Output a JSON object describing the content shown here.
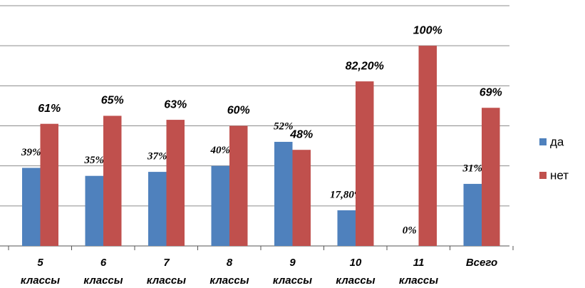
{
  "chart_data": {
    "type": "bar",
    "categories": [
      "5 классы",
      "6 классы",
      "7 классы",
      "8 классы",
      "9 классы",
      "10 классы",
      "11 классы",
      "Всего"
    ],
    "series": [
      {
        "name": "да",
        "color": "#4f81bd",
        "values": [
          39,
          35,
          37,
          40,
          52,
          17.8,
          0,
          31
        ],
        "value_labels": [
          "39%",
          "35%",
          "37%",
          "40%",
          "52%",
          "17,80%",
          "0%",
          "31%"
        ]
      },
      {
        "name": "нет",
        "color": "#c0504d",
        "values": [
          61,
          65,
          63,
          60,
          48,
          82.2,
          100,
          69
        ],
        "value_labels": [
          "61%",
          "65%",
          "63%",
          "60%",
          "48%",
          "82,20%",
          "100%",
          "69%"
        ]
      }
    ],
    "ylim": [
      0,
      120
    ],
    "yticks": [
      0,
      20,
      40,
      60,
      80,
      100,
      120
    ],
    "grid": true,
    "legend": "right"
  }
}
